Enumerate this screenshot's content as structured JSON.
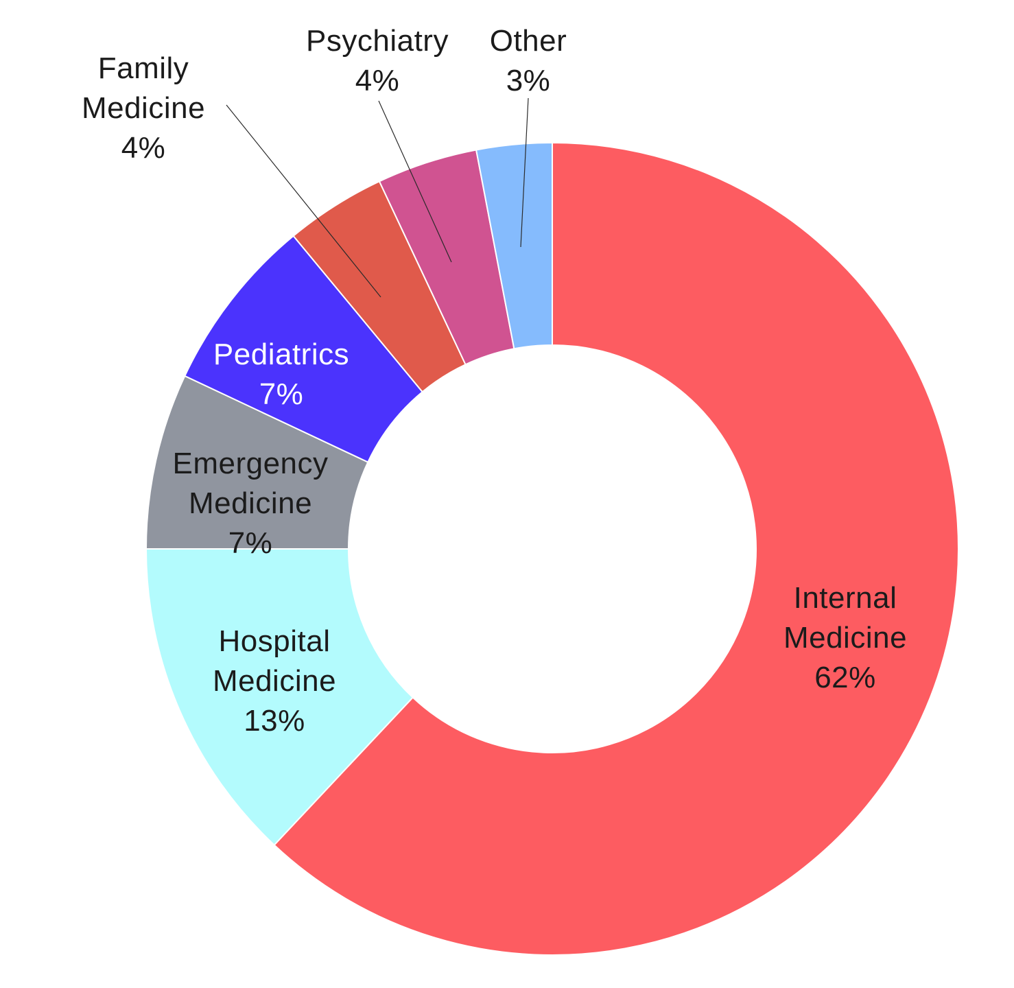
{
  "chart_data": {
    "type": "pie",
    "variant": "donut",
    "start_angle_deg": 0,
    "direction": "clockwise",
    "slices": [
      {
        "label": "Internal Medicine",
        "lines": [
          "Internal",
          "Medicine"
        ],
        "value_label": "62%",
        "value": 62,
        "color": "#FD5C61",
        "text_color": "#1b1b1b",
        "label_position": "inside"
      },
      {
        "label": "Hospital Medicine",
        "lines": [
          "Hospital",
          "Medicine"
        ],
        "value_label": "13%",
        "value": 13,
        "color": "#B3FBFD",
        "text_color": "#1b1b1b",
        "label_position": "inside"
      },
      {
        "label": "Emergency Medicine",
        "lines": [
          "Emergency",
          "Medicine"
        ],
        "value_label": "7%",
        "value": 7,
        "color": "#90959F",
        "text_color": "#1b1b1b",
        "label_position": "inside"
      },
      {
        "label": "Pediatrics",
        "lines": [
          "Pediatrics"
        ],
        "value_label": "7%",
        "value": 7,
        "color": "#4B33FD",
        "text_color": "#ffffff",
        "label_position": "inside"
      },
      {
        "label": "Family Medicine",
        "lines": [
          "Family",
          "Medicine"
        ],
        "value_label": "4%",
        "value": 4,
        "color": "#E05A4B",
        "text_color": "#1b1b1b",
        "label_position": "outside"
      },
      {
        "label": "Psychiatry",
        "lines": [
          "Psychiatry"
        ],
        "value_label": "4%",
        "value": 4,
        "color": "#D05391",
        "text_color": "#1b1b1b",
        "label_position": "outside"
      },
      {
        "label": "Other",
        "lines": [
          "Other"
        ],
        "value_label": "3%",
        "value": 3,
        "color": "#85BBFD",
        "text_color": "#1b1b1b",
        "label_position": "outside"
      }
    ]
  }
}
